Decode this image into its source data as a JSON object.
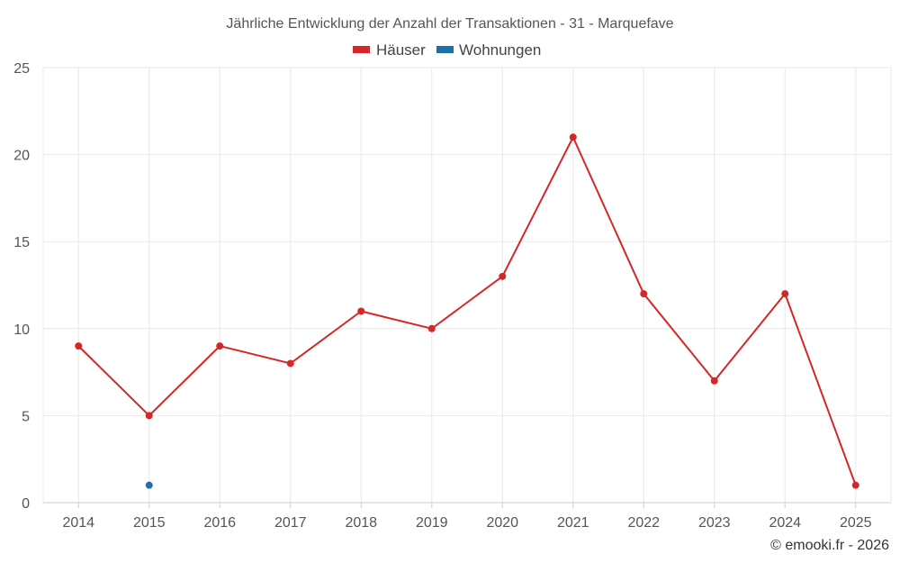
{
  "chart_data": {
    "type": "line",
    "title": "Jährliche Entwicklung der Anzahl der Transaktionen - 31 - Marquefave",
    "categories": [
      "2014",
      "2015",
      "2016",
      "2017",
      "2018",
      "2019",
      "2020",
      "2021",
      "2022",
      "2023",
      "2024",
      "2025"
    ],
    "series": [
      {
        "name": "Häuser",
        "color": "#d62728",
        "values": [
          9,
          5,
          9,
          8,
          11,
          10,
          13,
          21,
          12,
          7,
          12,
          1
        ]
      },
      {
        "name": "Wohnungen",
        "color": "#1f6fa8",
        "values": [
          null,
          1,
          null,
          null,
          null,
          null,
          null,
          null,
          null,
          null,
          null,
          null
        ]
      }
    ],
    "ylim": [
      0,
      25
    ],
    "yticks": [
      0,
      5,
      10,
      15,
      20,
      25
    ],
    "grid": true,
    "legend": "top-center",
    "xlabel": "",
    "ylabel": ""
  },
  "credit": "© emooki.fr - 2026"
}
